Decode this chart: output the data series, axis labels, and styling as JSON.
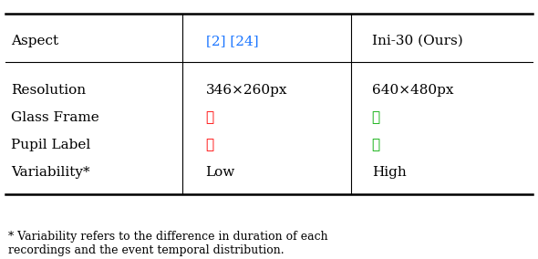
{
  "header_col1": "Aspect",
  "header_col2": "[2] [24]",
  "header_col3": "Ini-30 (Ours)",
  "rows": [
    [
      "Resolution",
      "346×260px",
      "640×480px"
    ],
    [
      "Glass Frame",
      "✗",
      "✓"
    ],
    [
      "Pupil Label",
      "✗",
      "✓"
    ],
    [
      "Variability*",
      "Low",
      "High"
    ]
  ],
  "col2_colors": [
    "#000000",
    "#ff0000",
    "#ff0000",
    "#000000"
  ],
  "col3_colors": [
    "#000000",
    "#00aa00",
    "#00aa00",
    "#000000"
  ],
  "header_col2_color": "#1a75ff",
  "footnote": "* Variability refers to the difference in duration of each\nrecordings and the event temporal distribution.",
  "bg_color": "#ffffff",
  "text_color": "#000000",
  "font_size": 11,
  "header_font_size": 11
}
